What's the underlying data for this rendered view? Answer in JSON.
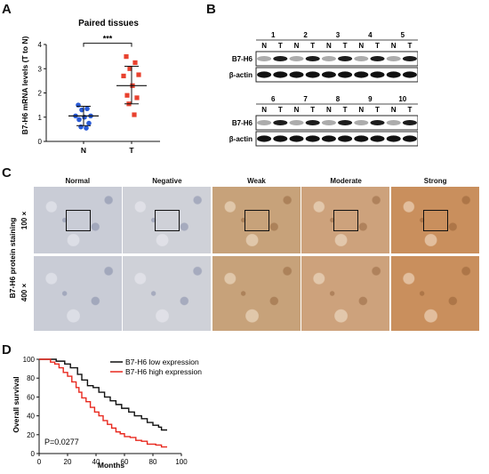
{
  "panel_labels": {
    "a": "A",
    "b": "B",
    "c": "C",
    "d": "D"
  },
  "panel_a": {
    "chart_data": {
      "type": "scatter",
      "title": "Paired tissues",
      "ylabel": "B7-H6 mRNA levels (T to N)",
      "categories": [
        "N",
        "T"
      ],
      "ylim": [
        0,
        4
      ],
      "yticks": [
        "0",
        "1",
        "2",
        "3",
        "4"
      ],
      "significance": "***",
      "series": [
        {
          "category": "N",
          "color": "#2a5bd7",
          "values": [
            1.5,
            1.35,
            1.3,
            1.05,
            1.05,
            1.0,
            0.9,
            0.75,
            0.6,
            0.55
          ],
          "mean": 1.05,
          "sd_low": 0.65,
          "sd_high": 1.45
        },
        {
          "category": "T",
          "color": "#e8412e",
          "values": [
            3.5,
            3.25,
            3.0,
            2.75,
            2.7,
            2.3,
            1.9,
            1.8,
            1.55,
            1.1
          ],
          "mean": 2.3,
          "sd_low": 1.55,
          "sd_high": 3.1
        }
      ]
    }
  },
  "panel_b": {
    "top": {
      "numbers": [
        "1",
        "2",
        "3",
        "4",
        "5"
      ],
      "nt": [
        "N",
        "T",
        "N",
        "T",
        "N",
        "T",
        "N",
        "T",
        "N",
        "T"
      ],
      "rows": [
        "B7-H6",
        "β-actin"
      ]
    },
    "bottom": {
      "numbers": [
        "6",
        "7",
        "8",
        "9",
        "10"
      ],
      "nt": [
        "N",
        "T",
        "N",
        "T",
        "N",
        "T",
        "N",
        "T",
        "N",
        "T"
      ],
      "rows": [
        "B7-H6",
        "β-actin"
      ]
    }
  },
  "panel_c": {
    "columns": [
      "Normal",
      "Negative",
      "Weak",
      "Moderate",
      "Strong"
    ],
    "row_labels": [
      "100 ×",
      "400 ×"
    ],
    "side_label": "B7-H6 protein staining",
    "colors": {
      "normal": "#c9ccd6",
      "negative": "#cfd1d8",
      "weak": "#c7a27a",
      "moderate": "#cda27c",
      "strong": "#c98f5d"
    }
  },
  "panel_d": {
    "chart_data": {
      "type": "line",
      "xlabel": "Months",
      "ylabel": "Overall survival",
      "xlim": [
        0,
        100
      ],
      "ylim": [
        0,
        100
      ],
      "xticks": [
        "0",
        "20",
        "40",
        "60",
        "80",
        "100"
      ],
      "yticks": [
        "0",
        "20",
        "40",
        "60",
        "80",
        "100"
      ],
      "annotation": "P=0.0277",
      "series": [
        {
          "name": "B7-H6 low expression",
          "color": "#111111",
          "steps": [
            [
              0,
              100
            ],
            [
              8,
              100
            ],
            [
              12,
              98
            ],
            [
              18,
              95
            ],
            [
              22,
              91
            ],
            [
              27,
              84
            ],
            [
              30,
              78
            ],
            [
              34,
              72
            ],
            [
              38,
              70
            ],
            [
              42,
              65
            ],
            [
              46,
              60
            ],
            [
              50,
              56
            ],
            [
              54,
              52
            ],
            [
              58,
              48
            ],
            [
              63,
              44
            ],
            [
              67,
              40
            ],
            [
              72,
              37
            ],
            [
              76,
              33
            ],
            [
              80,
              30
            ],
            [
              84,
              28
            ],
            [
              86,
              25
            ],
            [
              90,
              25
            ]
          ]
        },
        {
          "name": "B7-H6 high expression",
          "color": "#e8281e",
          "steps": [
            [
              0,
              100
            ],
            [
              5,
              100
            ],
            [
              8,
              97
            ],
            [
              11,
              95
            ],
            [
              14,
              91
            ],
            [
              17,
              86
            ],
            [
              20,
              82
            ],
            [
              23,
              76
            ],
            [
              26,
              70
            ],
            [
              28,
              65
            ],
            [
              30,
              59
            ],
            [
              33,
              55
            ],
            [
              36,
              49
            ],
            [
              39,
              44
            ],
            [
              42,
              40
            ],
            [
              45,
              35
            ],
            [
              48,
              31
            ],
            [
              51,
              27
            ],
            [
              54,
              23
            ],
            [
              57,
              21
            ],
            [
              60,
              18
            ],
            [
              64,
              17
            ],
            [
              68,
              14
            ],
            [
              72,
              13
            ],
            [
              76,
              10
            ],
            [
              82,
              9
            ],
            [
              86,
              7
            ],
            [
              90,
              7
            ]
          ]
        }
      ]
    }
  }
}
